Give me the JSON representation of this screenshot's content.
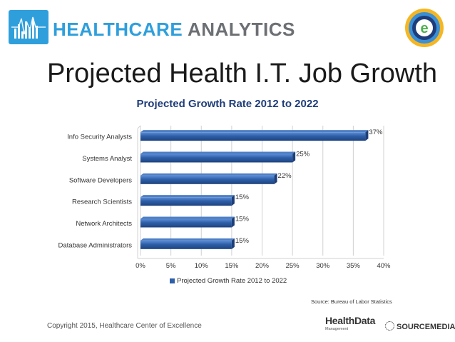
{
  "header": {
    "brand_word1": "HEALTHCARE",
    "brand_word2": "ANALYTICS",
    "brand_color": "#2f9fdc",
    "badge_letter": "e"
  },
  "slide_title": "Projected Health I.T. Job Growth",
  "chart_data": {
    "type": "bar",
    "orientation": "horizontal",
    "title": "Projected Growth Rate 2012 to 2022",
    "categories": [
      "Info Security Analysts",
      "Systems Analyst",
      "Software Developers",
      "Research Scientists",
      "Network Architects",
      "Database Administrators"
    ],
    "series": [
      {
        "name": "Projected Growth Rate 2012 to 2022",
        "values": [
          37,
          25,
          22,
          15,
          15,
          15
        ],
        "color": "#2e5fa8"
      }
    ],
    "data_labels": [
      "37%",
      "25%",
      "22%",
      "15%",
      "15%",
      "15%"
    ],
    "x_ticks": [
      "0%",
      "5%",
      "10%",
      "15%",
      "20%",
      "25%",
      "30%",
      "35%",
      "40%"
    ],
    "xlim": [
      0,
      40
    ],
    "grid": true,
    "legend_position": "bottom"
  },
  "source": "Source: Bureau of Labor Statistics",
  "footer": {
    "copyright": "Copyright 2015, Healthcare Center of Excellence",
    "logo1_main": "HealthData",
    "logo1_sub": "Management",
    "logo2": "SOURCEMEDIA"
  }
}
